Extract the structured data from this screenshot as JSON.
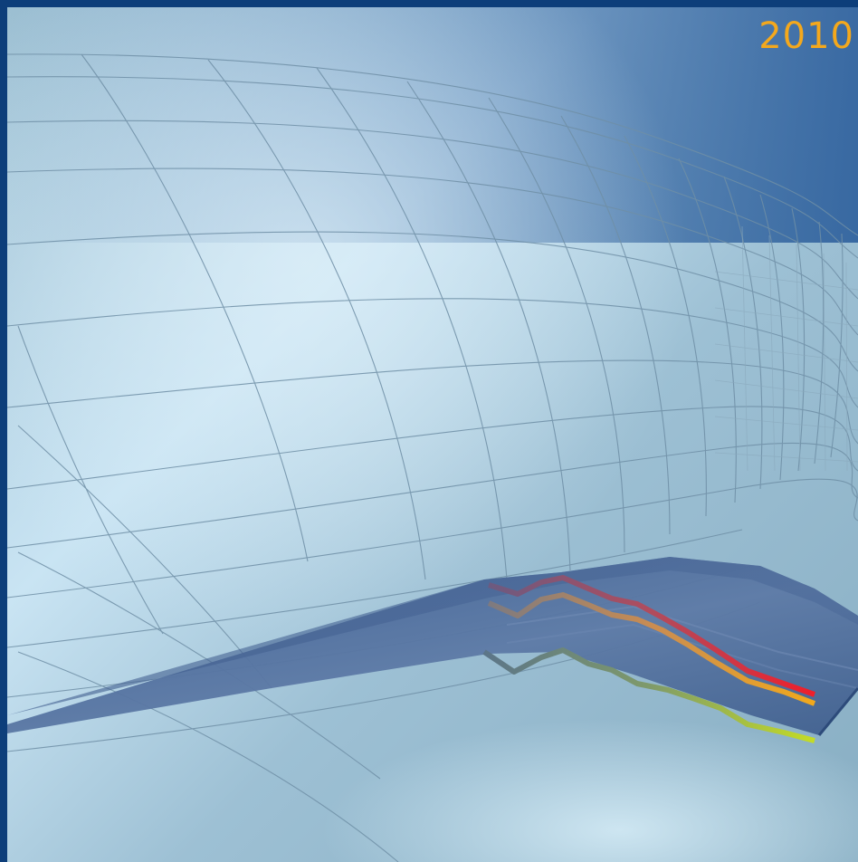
{
  "cover": {
    "year": "2010"
  },
  "colors": {
    "frame": "#0d3e7a",
    "year_text": "#f4a81c",
    "background_light": "#cfe8f6",
    "background_mid": "#8fb4c9",
    "background_dark": "#2d5f9c",
    "ribbon_fill": "#46618f",
    "line_red": "#e8242c",
    "line_orange": "#f0a31f",
    "line_green": "#b7cf2a"
  },
  "icons": {
    "grid": "perspective-mesh-grid",
    "ribbon": "3d-line-chart-ribbon"
  }
}
